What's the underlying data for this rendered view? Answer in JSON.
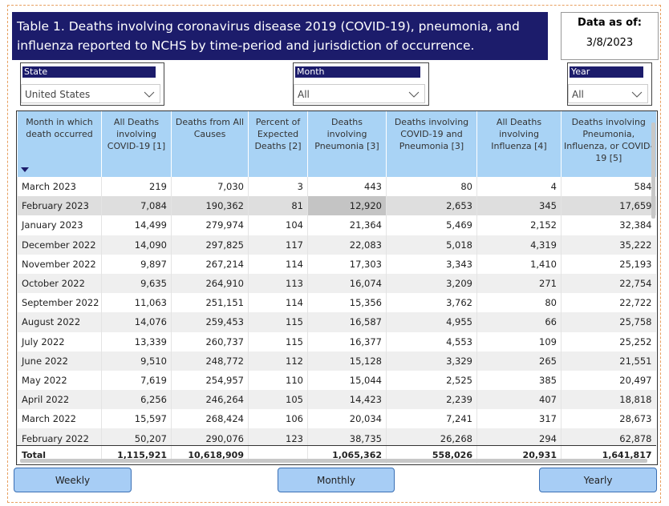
{
  "header": {
    "title": "Table 1. Deaths involving coronavirus disease 2019 (COVID-19), pneumonia, and influenza reported to NCHS by time-period and jurisdiction of occurrence."
  },
  "data_as_of": {
    "label": "Data as of:",
    "date": "3/8/2023"
  },
  "filters": [
    {
      "label": "State",
      "value": "United States"
    },
    {
      "label": "Month",
      "value": "All"
    },
    {
      "label": "Year",
      "value": "All"
    }
  ],
  "table": {
    "columns": [
      "Month in which death occurred",
      "All Deaths involving COVID-19 [1]",
      "Deaths from All Causes",
      "Percent of Expected Deaths [2]",
      "Deaths involving Pneumonia [3]",
      "Deaths involving COVID-19 and Pneumonia [3]",
      "All Deaths involving Influenza [4]",
      "Deaths involving Pneumonia, Influenza, or COVID-19 [5]"
    ],
    "rows": [
      [
        "March 2023",
        "219",
        "7,030",
        "3",
        "443",
        "80",
        "4",
        "584"
      ],
      [
        "February 2023",
        "7,084",
        "190,362",
        "81",
        "12,920",
        "2,653",
        "345",
        "17,659"
      ],
      [
        "January 2023",
        "14,499",
        "279,974",
        "104",
        "21,364",
        "5,469",
        "2,152",
        "32,384"
      ],
      [
        "December 2022",
        "14,090",
        "297,825",
        "117",
        "22,083",
        "5,018",
        "4,319",
        "35,222"
      ],
      [
        "November 2022",
        "9,897",
        "267,214",
        "114",
        "17,303",
        "3,343",
        "1,410",
        "25,193"
      ],
      [
        "October 2022",
        "9,635",
        "264,910",
        "113",
        "16,074",
        "3,209",
        "271",
        "22,754"
      ],
      [
        "September 2022",
        "11,063",
        "251,151",
        "114",
        "15,356",
        "3,762",
        "80",
        "22,722"
      ],
      [
        "August 2022",
        "14,076",
        "259,453",
        "115",
        "16,587",
        "4,955",
        "66",
        "25,758"
      ],
      [
        "July 2022",
        "13,339",
        "260,737",
        "115",
        "16,377",
        "4,553",
        "109",
        "25,252"
      ],
      [
        "June 2022",
        "9,510",
        "248,772",
        "112",
        "15,128",
        "3,329",
        "265",
        "21,551"
      ],
      [
        "May 2022",
        "7,619",
        "254,957",
        "110",
        "15,044",
        "2,525",
        "385",
        "20,497"
      ],
      [
        "April 2022",
        "6,256",
        "246,264",
        "105",
        "14,423",
        "2,239",
        "407",
        "18,818"
      ],
      [
        "March 2022",
        "15,597",
        "268,424",
        "106",
        "20,034",
        "7,241",
        "317",
        "28,673"
      ],
      [
        "February 2022",
        "50,207",
        "290,076",
        "123",
        "38,735",
        "26,268",
        "294",
        "62,878"
      ]
    ],
    "total": [
      "Total",
      "1,115,921",
      "10,618,909",
      null,
      "1,065,362",
      "558,026",
      "20,931",
      "1,641,817"
    ]
  },
  "buttons": [
    "Weekly",
    "Monthly",
    "Yearly"
  ]
}
